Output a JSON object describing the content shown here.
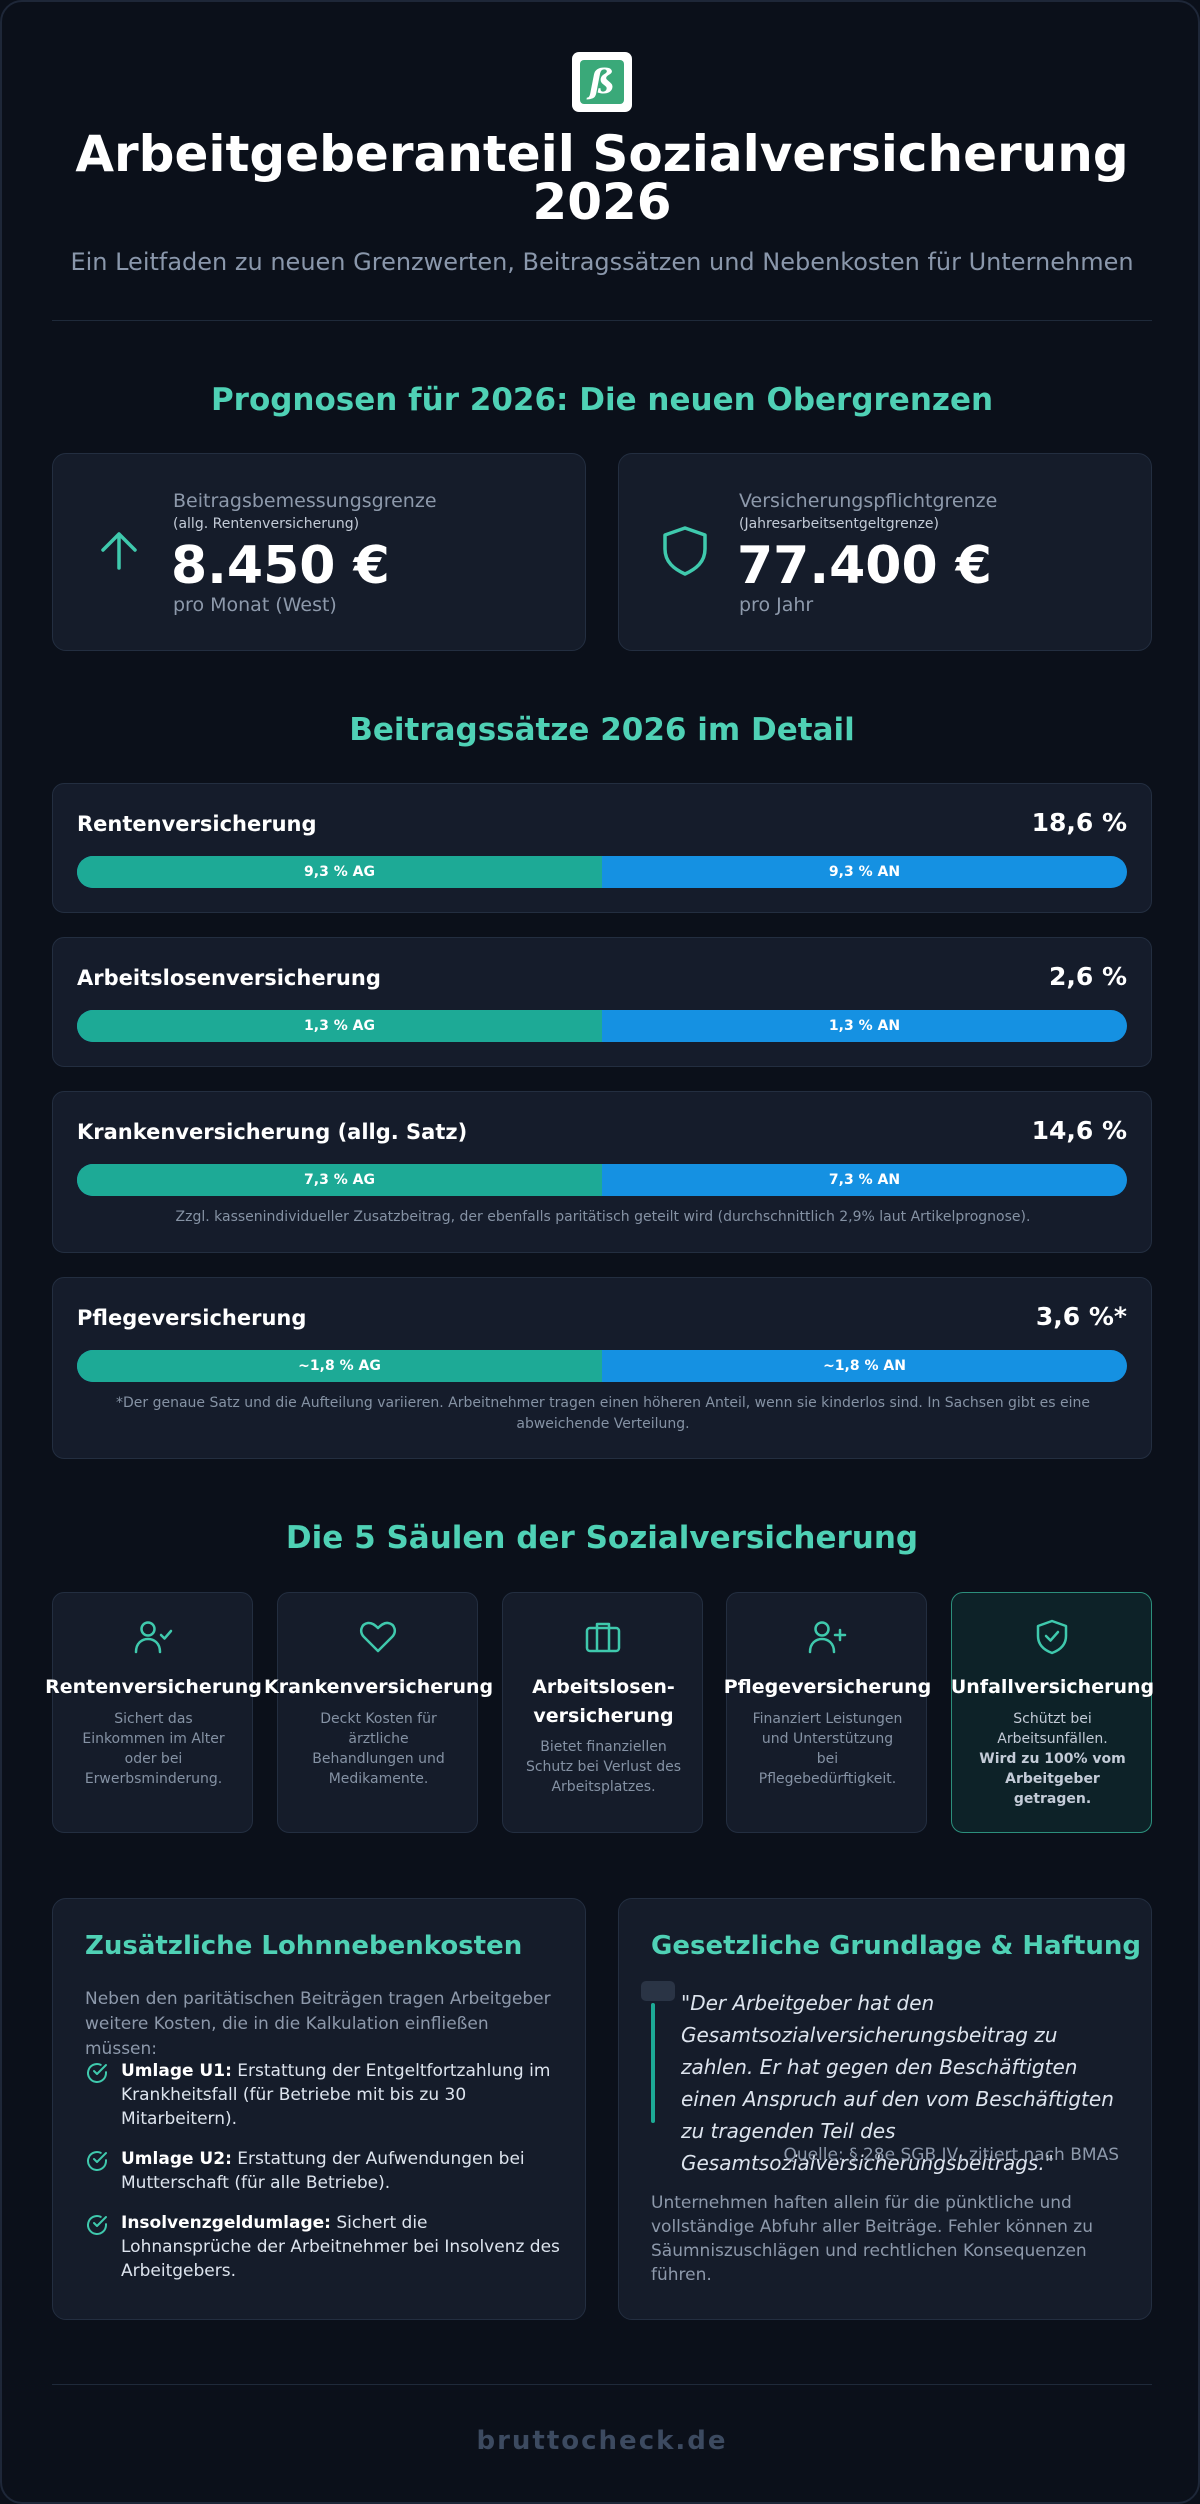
{
  "logo": {
    "glyph": "ß"
  },
  "header": {
    "title": "Arbeitgeberanteil Sozialversicherung 2026",
    "subtitle": "Ein Leitfaden zu neuen Grenzwerten, Beitragssätzen und Nebenkosten für Unternehmen"
  },
  "limits": {
    "heading": "Prognosen für 2026: Die neuen Obergrenzen",
    "cards": [
      {
        "label": "Beitragsbemessungsgrenze",
        "sublabel": "(allg. Rentenversicherung)",
        "value": "8.450 €",
        "unit": "pro Monat (West)",
        "icon": "arrow-up-icon"
      },
      {
        "label": "Versicherungspflichtgrenze",
        "sublabel": "(Jahresarbeitsentgeltgrenze)",
        "value": "77.400 €",
        "unit": "pro Jahr",
        "icon": "shield-icon"
      }
    ]
  },
  "rates": {
    "heading": "Beitragssätze 2026 im Detail",
    "items": [
      {
        "name": "Rentenversicherung",
        "total": "18,6 %",
        "ag_label": "9,3 % AG",
        "an_label": "9,3 % AN",
        "ag_share": 0.5,
        "note": ""
      },
      {
        "name": "Arbeitslosenversicherung",
        "total": "2,6 %",
        "ag_label": "1,3 % AG",
        "an_label": "1,3 % AN",
        "ag_share": 0.5,
        "note": ""
      },
      {
        "name": "Krankenversicherung (allg. Satz)",
        "total": "14,6 %",
        "ag_label": "7,3 % AG",
        "an_label": "7,3 % AN",
        "ag_share": 0.5,
        "note": "Zzgl. kassenindividueller Zusatzbeitrag, der ebenfalls paritätisch geteilt wird (durchschnittlich 2,9% laut Artikelprognose)."
      },
      {
        "name": "Pflegeversicherung",
        "total": "3,6 %*",
        "ag_label": "~1,8 % AG",
        "an_label": "~1,8 % AN",
        "ag_share": 0.5,
        "note": "*Der genaue Satz und die Aufteilung variieren. Arbeitnehmer tragen einen höheren Anteil, wenn sie kinderlos sind. In Sachsen gibt es eine abweichende Verteilung."
      }
    ],
    "colors": {
      "ag": "#1daa96",
      "an": "#1591e2"
    }
  },
  "pillars": {
    "heading": "Die 5 Säulen der Sozialversicherung",
    "items": [
      {
        "title": "Rentenversicherung",
        "desc": "Sichert das Einkommen im Alter oder bei Erwerbsminderung.",
        "strong": "",
        "icon": "user-check-icon"
      },
      {
        "title": "Krankenversicherung",
        "desc": "Deckt Kosten für ärztliche Behandlungen und Medikamente.",
        "strong": "",
        "icon": "heart-icon"
      },
      {
        "title": "Arbeitslosen-versicherung",
        "desc": "Bietet finanziellen Schutz bei Verlust des Arbeitsplatzes.",
        "strong": "",
        "icon": "briefcase-icon"
      },
      {
        "title": "Pflegeversicherung",
        "desc": "Finanziert Leistungen und Unterstützung bei Pflegebedürftigkeit.",
        "strong": "",
        "icon": "user-plus-icon"
      },
      {
        "title": "Unfallversicherung",
        "desc": "Schützt bei Arbeitsunfällen.",
        "strong": "Wird zu 100% vom Arbeitgeber getragen.",
        "icon": "shield-check-icon"
      }
    ]
  },
  "costs": {
    "heading": "Zusätzliche Lohnnebenkosten",
    "intro": "Neben den paritätischen Beiträgen tragen Arbeitgeber weitere Kosten, die in die Kalkulation einfließen müssen:",
    "items": [
      {
        "term": "Umlage U1:",
        "text": " Erstattung der Entgeltfortzahlung im Krankheitsfall (für Betriebe mit bis zu 30 Mitarbeitern)."
      },
      {
        "term": "Umlage U2:",
        "text": " Erstattung der Aufwendungen bei Mutterschaft (für alle Betriebe)."
      },
      {
        "term": "Insolvenzgeldumlage:",
        "text": " Sichert die Lohnansprüche der Arbeitnehmer bei Insolvenz des Arbeitgebers."
      }
    ]
  },
  "legal": {
    "heading": "Gesetzliche Grundlage & Haftung",
    "quote": "\"Der Arbeitgeber hat den Gesamtsozialversicherungsbeitrag zu zahlen. Er hat gegen den Beschäftigten einen Anspruch auf den vom Beschäftigten zu tragenden Teil des Gesamtsozialversicherungsbeitrags.\"",
    "source": "Quelle: § 28e SGB IV, zitiert nach BMAS",
    "outro": "Unternehmen haften allein für die pünktliche und vollständige Abfuhr aller Beiträge. Fehler können zu Säumniszuschlägen und rechtlichen Konsequenzen führen."
  },
  "footer": {
    "brand": "bruttocheck.de"
  }
}
